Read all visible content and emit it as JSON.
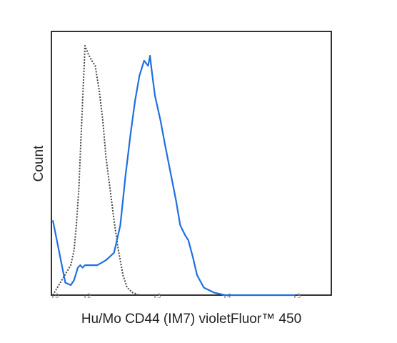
{
  "chart_data": {
    "type": "line",
    "title": "",
    "xlabel": "Hu/Mo CD44 (IM7) violetFluor™ 450",
    "ylabel": "Count",
    "x_scale": "log",
    "xlim": [
      0,
      100000
    ],
    "ylim": [
      0,
      1
    ],
    "x_ticks": [
      0,
      100,
      1000,
      10000,
      100000
    ],
    "x_tick_labels": [
      "0",
      "2",
      "3",
      "4",
      "5"
    ],
    "grid": false,
    "legend": "none",
    "series": [
      {
        "style": "dotted",
        "color": "#444444",
        "points": [
          [
            0,
            0.0
          ],
          [
            12,
            0.12
          ],
          [
            20,
            0.18
          ],
          [
            28,
            0.28
          ],
          [
            40,
            0.42
          ],
          [
            55,
            0.62
          ],
          [
            70,
            0.78
          ],
          [
            80,
            0.86
          ],
          [
            90,
            0.93
          ],
          [
            100,
            1.0
          ],
          [
            110,
            0.97
          ],
          [
            125,
            0.94
          ],
          [
            140,
            0.92
          ],
          [
            160,
            0.82
          ],
          [
            180,
            0.7
          ],
          [
            200,
            0.55
          ],
          [
            230,
            0.42
          ],
          [
            260,
            0.3
          ],
          [
            300,
            0.18
          ],
          [
            350,
            0.08
          ],
          [
            400,
            0.03
          ],
          [
            480,
            0.01
          ],
          [
            600,
            0.0
          ]
        ]
      },
      {
        "style": "solid",
        "color": "#1f6fe0",
        "points": [
          [
            0,
            0.3
          ],
          [
            5,
            0.05
          ],
          [
            12,
            0.04
          ],
          [
            20,
            0.06
          ],
          [
            35,
            0.11
          ],
          [
            50,
            0.12
          ],
          [
            70,
            0.11
          ],
          [
            100,
            0.12
          ],
          [
            150,
            0.12
          ],
          [
            200,
            0.14
          ],
          [
            260,
            0.17
          ],
          [
            320,
            0.28
          ],
          [
            380,
            0.48
          ],
          [
            450,
            0.65
          ],
          [
            520,
            0.78
          ],
          [
            600,
            0.88
          ],
          [
            700,
            0.94
          ],
          [
            800,
            0.92
          ],
          [
            850,
            0.96
          ],
          [
            900,
            0.9
          ],
          [
            1000,
            0.8
          ],
          [
            1200,
            0.7
          ],
          [
            1400,
            0.6
          ],
          [
            1700,
            0.48
          ],
          [
            2000,
            0.38
          ],
          [
            2300,
            0.28
          ],
          [
            2700,
            0.24
          ],
          [
            3000,
            0.22
          ],
          [
            3500,
            0.15
          ],
          [
            4000,
            0.08
          ],
          [
            5000,
            0.03
          ],
          [
            7000,
            0.01
          ],
          [
            10000,
            0.0
          ],
          [
            100000,
            0.0
          ]
        ]
      }
    ]
  }
}
